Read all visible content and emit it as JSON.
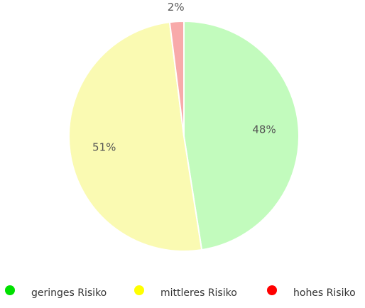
{
  "chart_data": {
    "type": "pie",
    "categories": [
      "geringes Risiko",
      "mittleres Risiko",
      "hohes Risiko"
    ],
    "values": [
      48,
      51,
      2
    ],
    "value_labels": [
      "48%",
      "51%",
      "2%"
    ],
    "colors": [
      "#c2fbbd",
      "#fafab2",
      "#f8aaaa"
    ],
    "legend_colors": [
      "#00e000",
      "#ffff00",
      "#ff0000"
    ]
  }
}
